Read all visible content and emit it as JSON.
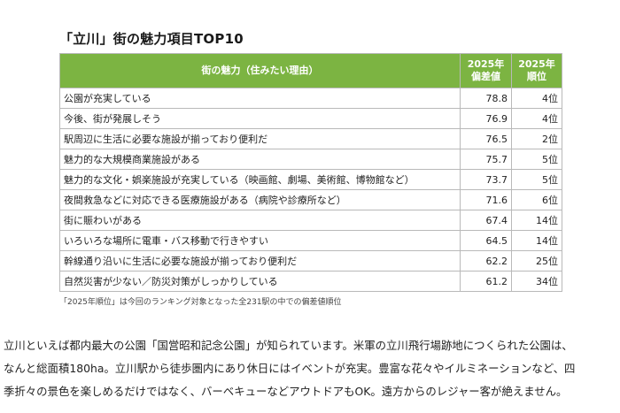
{
  "title": "「立川」街の魅力項目TOP10",
  "table": {
    "headers": {
      "reason": "街の魅力（住みたい理由）",
      "score_line1": "2025年",
      "score_line2": "偏差値",
      "rank_line1": "2025年",
      "rank_line2": "順位"
    },
    "rows": [
      {
        "reason": "公園が充実している",
        "score": "78.8",
        "rank": "4位"
      },
      {
        "reason": "今後、街が発展しそう",
        "score": "76.9",
        "rank": "4位"
      },
      {
        "reason": "駅周辺に生活に必要な施設が揃っており便利だ",
        "score": "76.5",
        "rank": "2位"
      },
      {
        "reason": "魅力的な大規模商業施設がある",
        "score": "75.7",
        "rank": "5位"
      },
      {
        "reason": "魅力的な文化・娯楽施設が充実している（映画館、劇場、美術館、博物館など）",
        "score": "73.7",
        "rank": "5位"
      },
      {
        "reason": "夜間救急などに対応できる医療施設がある（病院や診療所など）",
        "score": "71.6",
        "rank": "6位"
      },
      {
        "reason": "街に賑わいがある",
        "score": "67.4",
        "rank": "14位"
      },
      {
        "reason": "いろいろな場所に電車・バス移動で行きやすい",
        "score": "64.5",
        "rank": "14位"
      },
      {
        "reason": "幹線通り沿いに生活に必要な施設が揃っており便利だ",
        "score": "62.2",
        "rank": "25位"
      },
      {
        "reason": "自然災害が少ない／防災対策がしっかりしている",
        "score": "61.2",
        "rank": "34位"
      }
    ]
  },
  "note": "「2025年順位」は今回のランキング対象となった全231駅の中での偏差値順位",
  "body_lines": [
    "立川といえば都内最大の公園「国営昭和記念公園」が知られています。米軍の立川飛行場跡地につくられた公園は、",
    "なんと総面積180ha。立川駅から徒歩圏内にあり休日にはイベントが充実。豊富な花々やイルミネーションなど、四",
    "季折々の景色を楽しめるだけではなく、バーベキューなどアウトドアもOK。遠方からのレジャー客が絶えません。"
  ],
  "colors": {
    "header_green": "#7cb442",
    "border_gray": "#b9b9b9"
  }
}
